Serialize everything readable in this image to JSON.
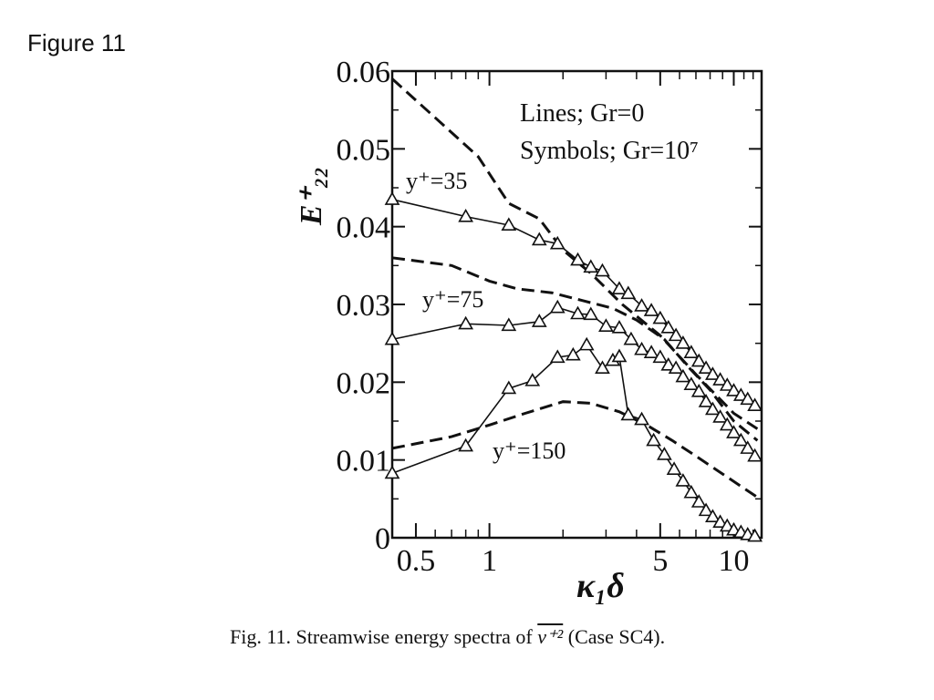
{
  "figure_label": "Figure 11",
  "caption": {
    "prefix": "Fig.  11. Streamwise energy spectra of ",
    "variable": "v⁺²",
    "suffix": " (Case SC4)."
  },
  "chart_data": {
    "type": "line",
    "xscale": "log",
    "xlim": [
      0.4,
      13
    ],
    "ylim": [
      0,
      0.06
    ],
    "xlabel": "κ₁δ",
    "ylabel": "E⁺₂₂",
    "x_ticks": [
      {
        "value": 0.5,
        "label": "0.5"
      },
      {
        "value": 1,
        "label": "1"
      },
      {
        "value": 5,
        "label": "5"
      },
      {
        "value": 10,
        "label": "10"
      }
    ],
    "y_ticks": [
      {
        "value": 0,
        "label": "0"
      },
      {
        "value": 0.01,
        "label": "0.01"
      },
      {
        "value": 0.02,
        "label": "0.02"
      },
      {
        "value": 0.03,
        "label": "0.03"
      },
      {
        "value": 0.04,
        "label": "0.04"
      },
      {
        "value": 0.05,
        "label": "0.05"
      },
      {
        "value": 0.06,
        "label": "0.06"
      }
    ],
    "legend_lines": [
      "Lines; Gr=0",
      "Symbols; Gr=10⁷"
    ],
    "legend_position": "top-right",
    "annotations": [
      "y⁺=35",
      "y⁺=75",
      "y⁺=150"
    ],
    "series": [
      {
        "name": "y⁺=35",
        "lines": {
          "x": [
            0.4,
            0.6,
            0.9,
            1.2,
            1.6,
            2.0,
            2.6,
            3.5,
            5.0,
            7.0,
            10.0,
            12.5
          ],
          "y": [
            0.059,
            0.054,
            0.049,
            0.043,
            0.041,
            0.037,
            0.034,
            0.03,
            0.026,
            0.021,
            0.016,
            0.014
          ]
        },
        "symbols": {
          "x": [
            0.4,
            0.8,
            1.2,
            1.6,
            1.9,
            2.3,
            2.6,
            2.9,
            3.4,
            3.7,
            4.2,
            4.6,
            5.0,
            5.4,
            5.8,
            6.2,
            6.7,
            7.2,
            7.7,
            8.2,
            8.8,
            9.4,
            10.0,
            10.7,
            11.4,
            12.2
          ],
          "y": [
            0.0435,
            0.0413,
            0.0402,
            0.0383,
            0.0378,
            0.0357,
            0.0348,
            0.0343,
            0.032,
            0.0314,
            0.0298,
            0.0292,
            0.0282,
            0.027,
            0.026,
            0.025,
            0.0238,
            0.0227,
            0.0218,
            0.021,
            0.0203,
            0.0196,
            0.0189,
            0.0183,
            0.0178,
            0.017
          ]
        }
      },
      {
        "name": "y⁺=75",
        "lines": {
          "x": [
            0.4,
            0.7,
            1.0,
            1.3,
            1.8,
            2.4,
            3.2,
            4.0,
            5.2,
            6.5,
            8.0,
            10.0,
            12.5
          ],
          "y": [
            0.036,
            0.035,
            0.033,
            0.032,
            0.0315,
            0.0305,
            0.0295,
            0.028,
            0.0255,
            0.022,
            0.019,
            0.015,
            0.0125
          ]
        },
        "symbols": {
          "x": [
            0.4,
            0.8,
            1.2,
            1.6,
            1.9,
            2.3,
            2.6,
            3.0,
            3.4,
            3.8,
            4.2,
            4.6,
            5.0,
            5.4,
            5.8,
            6.2,
            6.7,
            7.2,
            7.7,
            8.2,
            8.8,
            9.4,
            10.0,
            10.7,
            11.4,
            12.2
          ],
          "y": [
            0.0255,
            0.0275,
            0.0273,
            0.0278,
            0.0296,
            0.0288,
            0.0287,
            0.0272,
            0.027,
            0.0255,
            0.0242,
            0.0238,
            0.0232,
            0.0222,
            0.0218,
            0.0207,
            0.0197,
            0.0188,
            0.0175,
            0.0165,
            0.0155,
            0.0145,
            0.0135,
            0.0125,
            0.0115,
            0.0105
          ]
        }
      },
      {
        "name": "y⁺=150",
        "lines": {
          "x": [
            0.4,
            0.7,
            1.0,
            1.4,
            2.0,
            2.6,
            3.4,
            4.4,
            5.6,
            7.0,
            9.0,
            12.5
          ],
          "y": [
            0.0115,
            0.013,
            0.0145,
            0.016,
            0.0175,
            0.0173,
            0.0162,
            0.0145,
            0.0125,
            0.0105,
            0.0082,
            0.0052
          ]
        },
        "symbols": {
          "x": [
            0.4,
            0.8,
            1.2,
            1.5,
            1.9,
            2.2,
            2.5,
            2.9,
            3.2,
            3.4,
            3.7,
            4.2,
            4.7,
            5.2,
            5.7,
            6.2,
            6.7,
            7.2,
            7.7,
            8.2,
            8.8,
            9.4,
            10.0,
            10.7,
            11.4,
            12.2
          ],
          "y": [
            0.0083,
            0.0118,
            0.0192,
            0.0202,
            0.0232,
            0.0235,
            0.0248,
            0.0218,
            0.0228,
            0.0233,
            0.0158,
            0.0152,
            0.0125,
            0.0107,
            0.0088,
            0.0073,
            0.0058,
            0.0046,
            0.0035,
            0.0027,
            0.002,
            0.0015,
            0.001,
            0.0007,
            0.0004,
            0.0002
          ]
        }
      }
    ]
  }
}
